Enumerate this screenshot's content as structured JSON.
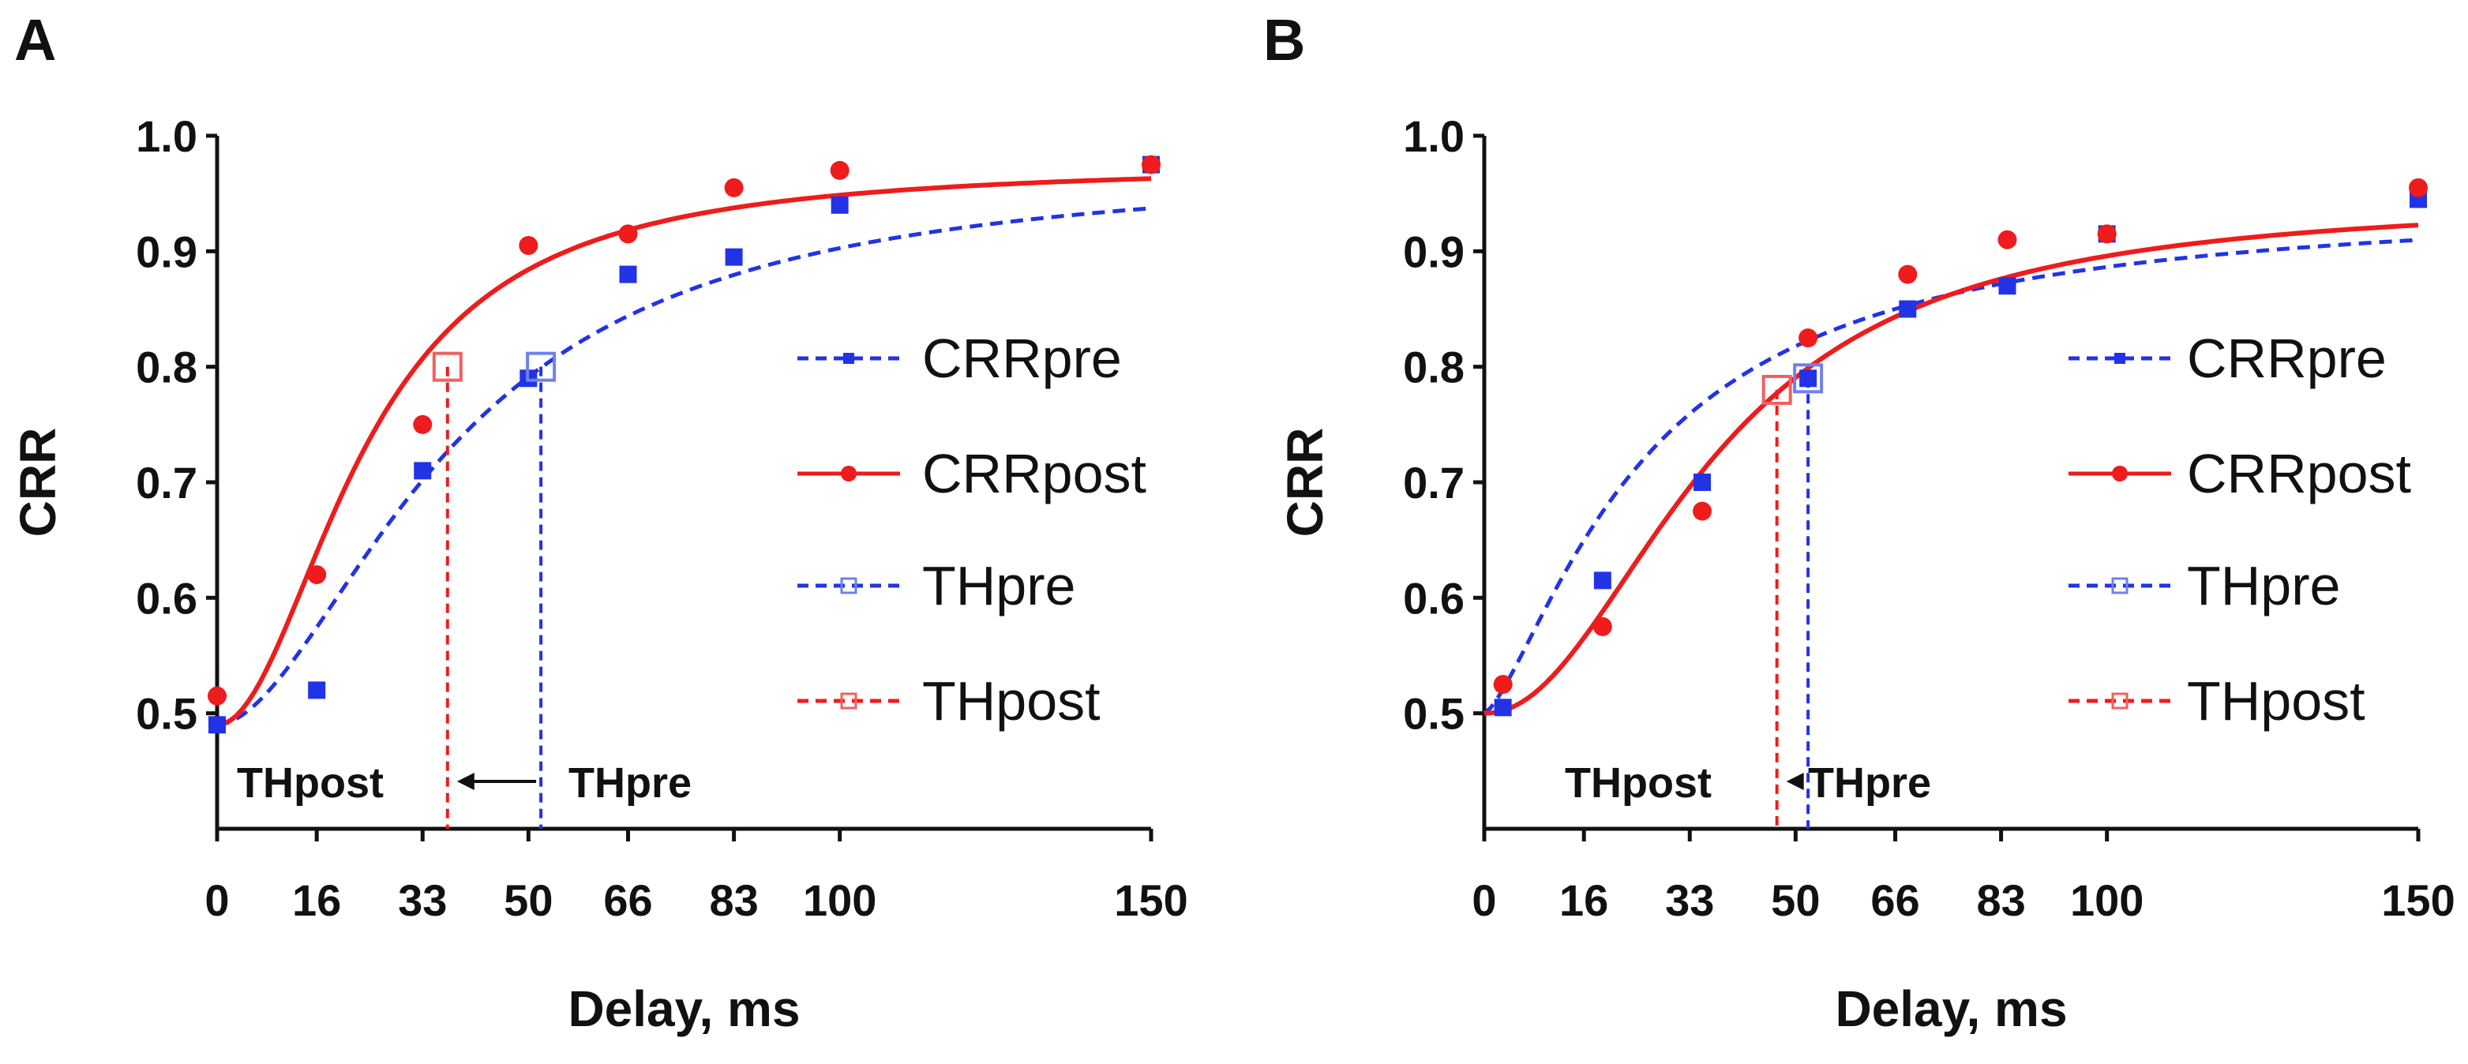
{
  "chart_data": [
    {
      "panel": "A",
      "type": "line",
      "xlabel": "Delay, ms",
      "ylabel": "CRR",
      "x_ticks": [
        0,
        16,
        33,
        50,
        66,
        83,
        100,
        150
      ],
      "y_ticks": [
        "0.5",
        "0.6",
        "0.7",
        "0.8",
        "0.9",
        "1.0"
      ],
      "xlim": [
        0,
        150
      ],
      "ylim": [
        0.4,
        1.0
      ],
      "legend": [
        "CRRpre",
        "CRRpost",
        "THpre",
        "THpost"
      ],
      "series": [
        {
          "name": "CRRpre",
          "x": [
            0,
            16,
            33,
            50,
            66,
            83,
            100,
            150
          ],
          "y": [
            0.49,
            0.52,
            0.71,
            0.79,
            0.88,
            0.895,
            0.94,
            0.975
          ]
        },
        {
          "name": "CRRpost",
          "x": [
            0,
            16,
            33,
            50,
            66,
            83,
            100,
            150
          ],
          "y": [
            0.515,
            0.62,
            0.75,
            0.905,
            0.915,
            0.955,
            0.97,
            0.975
          ]
        }
      ],
      "fit_curves": [
        {
          "name": "CRRpre fit",
          "base": 0.49,
          "top": 0.975,
          "midpoint": 38,
          "slope": 1.8
        },
        {
          "name": "CRRpost fit",
          "base": 0.49,
          "top": 0.975,
          "midpoint": 24,
          "slope": 2.0
        }
      ],
      "thresholds": [
        {
          "name": "THpre",
          "x": 52,
          "y": 0.8
        },
        {
          "name": "THpost",
          "x": 37,
          "y": 0.8
        }
      ],
      "annotations": {
        "left": "THpost",
        "right": "THpre"
      }
    },
    {
      "panel": "B",
      "type": "line",
      "xlabel": "Delay, ms",
      "ylabel": "CRR",
      "x_ticks": [
        0,
        16,
        33,
        50,
        66,
        83,
        100,
        150
      ],
      "y_ticks": [
        "0.5",
        "0.6",
        "0.7",
        "0.8",
        "0.9",
        "1.0"
      ],
      "xlim": [
        0,
        150
      ],
      "ylim": [
        0.4,
        1.0
      ],
      "legend": [
        "CRRpre",
        "CRRpost",
        "THpre",
        "THpost"
      ],
      "series": [
        {
          "name": "CRRpre",
          "x": [
            3,
            19,
            35,
            52,
            68,
            84,
            100,
            150
          ],
          "y": [
            0.505,
            0.615,
            0.7,
            0.79,
            0.85,
            0.87,
            0.915,
            0.945
          ]
        },
        {
          "name": "CRRpost",
          "x": [
            3,
            19,
            35,
            52,
            68,
            84,
            100,
            150
          ],
          "y": [
            0.525,
            0.575,
            0.675,
            0.825,
            0.88,
            0.91,
            0.915,
            0.955
          ]
        }
      ],
      "fit_curves": [
        {
          "name": "CRRpre fit",
          "base": 0.5,
          "top": 0.945,
          "midpoint": 26,
          "slope": 1.4
        },
        {
          "name": "CRRpost fit",
          "base": 0.5,
          "top": 0.945,
          "midpoint": 37,
          "slope": 2.1
        }
      ],
      "thresholds": [
        {
          "name": "THpre",
          "x": 52,
          "y": 0.79
        },
        {
          "name": "THpost",
          "x": 47,
          "y": 0.78
        }
      ],
      "annotations": {
        "left": "THpost",
        "right": "THpre"
      }
    }
  ],
  "colors": {
    "pre": "#2233e6",
    "post": "#ee1c1c",
    "pre_open": "#6f80f0",
    "post_open": "#f06060",
    "axis": "#111111"
  }
}
